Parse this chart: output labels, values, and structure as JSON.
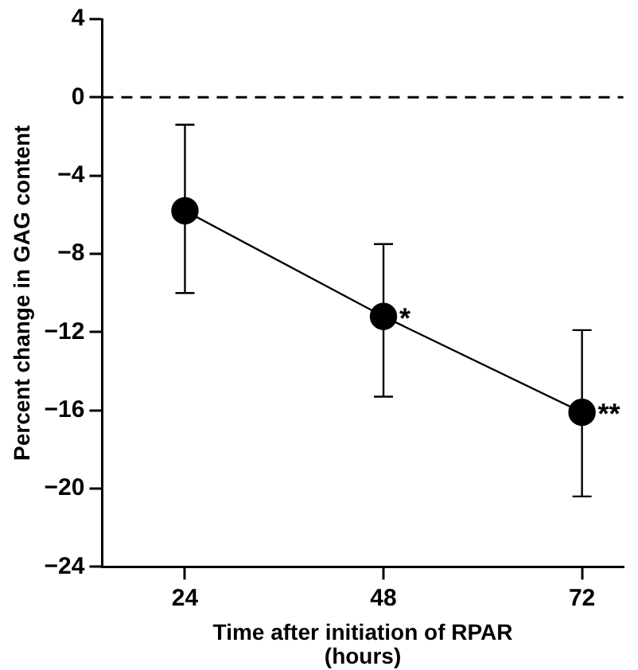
{
  "chart_data": {
    "type": "line",
    "xlabel": "Time after initiation of RPAR\n(hours)",
    "ylabel": "Percent change in GAG content",
    "x": [
      24,
      48,
      72
    ],
    "series": [
      {
        "color": "#000000",
        "values": [
          -5.8,
          -11.2,
          -16.1
        ],
        "errors": [
          [
            -10.0,
            -1.4
          ],
          [
            -15.3,
            -7.5
          ],
          [
            -20.4,
            -11.9
          ]
        ]
      }
    ],
    "xlim": [
      14,
      77
    ],
    "xticks": [
      24,
      48,
      72
    ],
    "ylim": [
      -24,
      4
    ],
    "yticks": [
      -24,
      -20,
      -16,
      -12,
      -8,
      -4,
      0,
      4
    ],
    "ref_lines": [
      {
        "axis": "y",
        "value": 0,
        "line_style": "dashed"
      }
    ],
    "annotations": [
      {
        "text": "*",
        "x": 48,
        "y": -11.2
      },
      {
        "text": "**",
        "x": 72,
        "y": -16.1
      }
    ],
    "marker": "circle",
    "line_style": "solid",
    "grid": false,
    "legend": false
  }
}
